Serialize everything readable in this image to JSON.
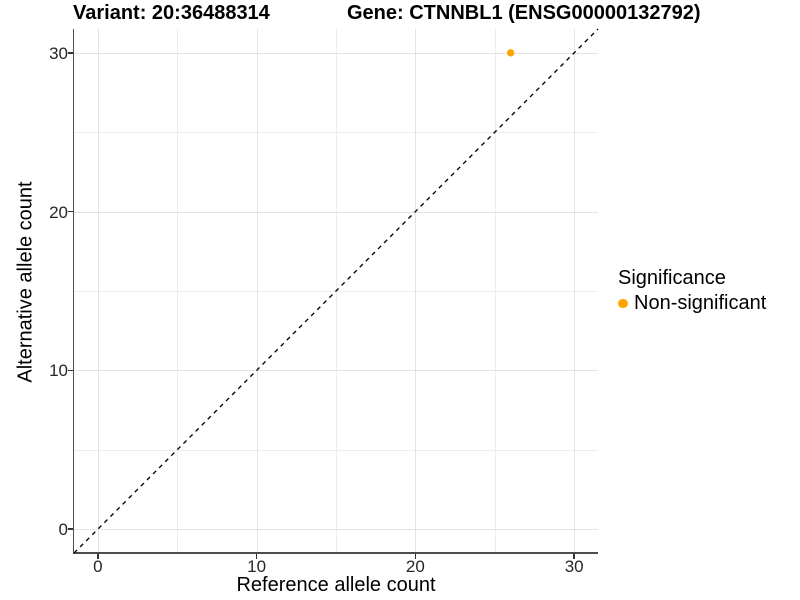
{
  "chart_data": {
    "type": "scatter",
    "titles": {
      "variant": "Variant: 20:36488314",
      "gene": "Gene: CTNNBL1 (ENSG00000132792)"
    },
    "xlabel": "Reference allele count",
    "ylabel": "Alternative allele count",
    "xlim": [
      -1.5,
      31.5
    ],
    "ylim": [
      -1.5,
      31.5
    ],
    "x_ticks": [
      0,
      10,
      20,
      30
    ],
    "y_ticks": [
      0,
      10,
      20,
      30
    ],
    "x_minor_ticks": [
      5,
      15,
      25
    ],
    "y_minor_ticks": [
      5,
      15,
      25
    ],
    "grid": "major+minor",
    "points": [
      {
        "x": 26,
        "y": 30,
        "significance": "Non-significant"
      }
    ],
    "identity_line": {
      "style": "dashed",
      "from": [
        -1.5,
        -1.5
      ],
      "to": [
        31.5,
        31.5
      ],
      "color": "#000000"
    },
    "legend": {
      "title": "Significance",
      "position": "right",
      "entries": [
        {
          "label": "Non-significant",
          "color": "#FFA500"
        }
      ]
    }
  }
}
